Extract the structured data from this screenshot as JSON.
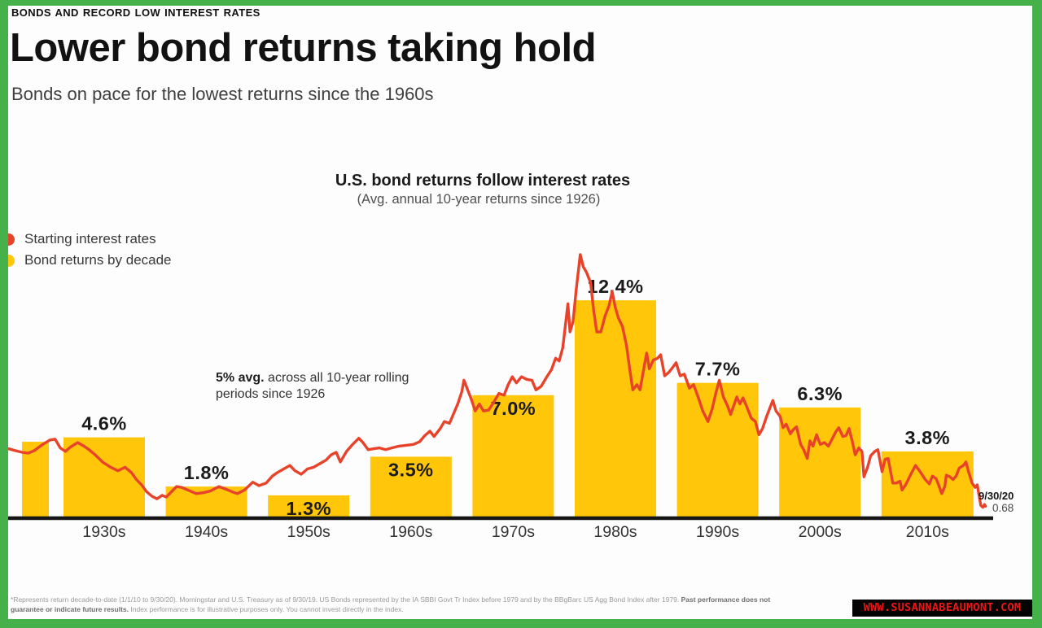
{
  "header": {
    "kicker": "BONDS AND RECORD LOW INTEREST RATES",
    "title": "Lower bond returns taking hold",
    "subtitle": "Bonds on pace for the lowest returns since the 1960s"
  },
  "chart": {
    "note": {
      "bold": "5% avg.",
      "rest": "across all 10-year rolling periods since 1926"
    },
    "end_label": {
      "date": "9/30/20",
      "value": "0.68"
    }
  },
  "chart_data": {
    "type": "bar+line",
    "title": "U.S. bond returns follow interest rates",
    "subtitle": "(Avg. annual 10-year returns since 1926)",
    "y_unit": "percent",
    "ylim": [
      0,
      16
    ],
    "xlim": [
      1926,
      2020.75
    ],
    "grid": false,
    "legend_position": "top-left",
    "bars": {
      "name": "Bond returns by decade",
      "color": "#ffc60a",
      "categories": [
        "",
        "1930s",
        "1940s",
        "1950s",
        "1960s",
        "1970s",
        "1980s",
        "1990s",
        "2000s",
        "2010s"
      ],
      "values": [
        4.35,
        4.6,
        1.8,
        1.3,
        3.5,
        7.0,
        12.4,
        7.7,
        6.3,
        3.8
      ],
      "value_labels": [
        "",
        "4.6%",
        "1.8%",
        "1.3%",
        "3.5%",
        "7.0%",
        "12.4%",
        "7.7%",
        "6.3%",
        "3.8%"
      ],
      "label_positions": [
        "none",
        "above",
        "above",
        "inside",
        "inside",
        "inside",
        "above",
        "above",
        "above",
        "above"
      ]
    },
    "line": {
      "name": "Starting interest rates",
      "color": "#e8432a",
      "end_annotation": {
        "date": "9/30/20",
        "value": 0.68
      },
      "points": [
        [
          1925.9,
          3.95
        ],
        [
          1926.5,
          3.85
        ],
        [
          1927.2,
          3.75
        ],
        [
          1927.8,
          3.7
        ],
        [
          1928.4,
          3.85
        ],
        [
          1929.2,
          4.2
        ],
        [
          1929.9,
          4.45
        ],
        [
          1930.4,
          4.5
        ],
        [
          1930.9,
          4.0
        ],
        [
          1931.4,
          3.8
        ],
        [
          1931.9,
          4.05
        ],
        [
          1932.6,
          4.3
        ],
        [
          1933.2,
          4.1
        ],
        [
          1933.7,
          3.9
        ],
        [
          1934.3,
          3.6
        ],
        [
          1935,
          3.2
        ],
        [
          1935.8,
          2.9
        ],
        [
          1936.5,
          2.7
        ],
        [
          1937.2,
          2.9
        ],
        [
          1937.8,
          2.6
        ],
        [
          1938.3,
          2.2
        ],
        [
          1938.8,
          1.9
        ],
        [
          1939.3,
          1.5
        ],
        [
          1939.8,
          1.25
        ],
        [
          1940.3,
          1.1
        ],
        [
          1940.8,
          1.3
        ],
        [
          1941.2,
          1.2
        ],
        [
          1941.7,
          1.5
        ],
        [
          1942.2,
          1.8
        ],
        [
          1942.7,
          1.75
        ],
        [
          1943.3,
          1.6
        ],
        [
          1944.1,
          1.4
        ],
        [
          1944.8,
          1.45
        ],
        [
          1945.5,
          1.55
        ],
        [
          1946.3,
          1.8
        ],
        [
          1947,
          1.65
        ],
        [
          1947.6,
          1.5
        ],
        [
          1948.1,
          1.4
        ],
        [
          1948.8,
          1.6
        ],
        [
          1949.6,
          2.05
        ],
        [
          1950.2,
          1.85
        ],
        [
          1950.9,
          2.0
        ],
        [
          1951.5,
          2.4
        ],
        [
          1952,
          2.6
        ],
        [
          1952.6,
          2.8
        ],
        [
          1953.2,
          3.0
        ],
        [
          1953.7,
          2.7
        ],
        [
          1954.3,
          2.5
        ],
        [
          1954.9,
          2.8
        ],
        [
          1955.5,
          2.9
        ],
        [
          1956.1,
          3.1
        ],
        [
          1956.7,
          3.3
        ],
        [
          1957.2,
          3.6
        ],
        [
          1957.7,
          3.75
        ],
        [
          1958.1,
          3.2
        ],
        [
          1958.7,
          3.8
        ],
        [
          1959.3,
          4.2
        ],
        [
          1959.9,
          4.55
        ],
        [
          1960.3,
          4.3
        ],
        [
          1960.8,
          3.9
        ],
        [
          1961.3,
          3.95
        ],
        [
          1961.9,
          4.0
        ],
        [
          1962.5,
          3.9
        ],
        [
          1963.1,
          4.0
        ],
        [
          1963.8,
          4.1
        ],
        [
          1964.5,
          4.15
        ],
        [
          1965.2,
          4.2
        ],
        [
          1965.8,
          4.35
        ],
        [
          1966.3,
          4.7
        ],
        [
          1966.8,
          4.95
        ],
        [
          1967.2,
          4.65
        ],
        [
          1967.8,
          5.1
        ],
        [
          1968.2,
          5.5
        ],
        [
          1968.7,
          5.4
        ],
        [
          1969.1,
          5.95
        ],
        [
          1969.5,
          6.5
        ],
        [
          1969.9,
          7.2
        ],
        [
          1970.1,
          7.85
        ],
        [
          1970.4,
          7.4
        ],
        [
          1970.8,
          6.8
        ],
        [
          1971.2,
          6.1
        ],
        [
          1971.6,
          6.5
        ],
        [
          1972,
          6.1
        ],
        [
          1972.5,
          6.15
        ],
        [
          1973,
          6.6
        ],
        [
          1973.5,
          7.1
        ],
        [
          1974,
          7.0
        ],
        [
          1974.4,
          7.6
        ],
        [
          1974.8,
          8.05
        ],
        [
          1975.2,
          7.7
        ],
        [
          1975.7,
          8.05
        ],
        [
          1976.2,
          7.9
        ],
        [
          1976.7,
          7.85
        ],
        [
          1977.1,
          7.3
        ],
        [
          1977.6,
          7.5
        ],
        [
          1978.1,
          8.0
        ],
        [
          1978.6,
          8.45
        ],
        [
          1979,
          9.1
        ],
        [
          1979.35,
          8.95
        ],
        [
          1979.7,
          9.7
        ],
        [
          1980,
          11.2
        ],
        [
          1980.2,
          12.2
        ],
        [
          1980.4,
          10.6
        ],
        [
          1980.7,
          11.2
        ],
        [
          1981,
          13.0
        ],
        [
          1981.2,
          14.0
        ],
        [
          1981.4,
          15.0
        ],
        [
          1981.7,
          14.3
        ],
        [
          1982,
          14.0
        ],
        [
          1982.4,
          13.4
        ],
        [
          1982.7,
          11.8
        ],
        [
          1983,
          10.6
        ],
        [
          1983.4,
          10.6
        ],
        [
          1983.8,
          11.5
        ],
        [
          1984.2,
          12.1
        ],
        [
          1984.5,
          12.9
        ],
        [
          1984.8,
          12.0
        ],
        [
          1985.1,
          11.4
        ],
        [
          1985.5,
          10.9
        ],
        [
          1985.9,
          9.8
        ],
        [
          1986.2,
          8.5
        ],
        [
          1986.5,
          7.3
        ],
        [
          1986.9,
          7.6
        ],
        [
          1987.2,
          7.3
        ],
        [
          1987.6,
          8.6
        ],
        [
          1987.85,
          9.4
        ],
        [
          1988.1,
          8.5
        ],
        [
          1988.5,
          9.0
        ],
        [
          1988.9,
          9.1
        ],
        [
          1989.2,
          9.3
        ],
        [
          1989.6,
          8.1
        ],
        [
          1990,
          8.3
        ],
        [
          1990.4,
          8.6
        ],
        [
          1990.7,
          8.85
        ],
        [
          1991.1,
          8.1
        ],
        [
          1991.5,
          8.2
        ],
        [
          1992,
          7.4
        ],
        [
          1992.4,
          7.6
        ],
        [
          1992.9,
          6.8
        ],
        [
          1993.3,
          6.1
        ],
        [
          1993.8,
          5.5
        ],
        [
          1994.2,
          6.2
        ],
        [
          1994.6,
          7.2
        ],
        [
          1994.9,
          7.85
        ],
        [
          1995.3,
          6.9
        ],
        [
          1995.7,
          6.4
        ],
        [
          1996,
          5.9
        ],
        [
          1996.3,
          6.4
        ],
        [
          1996.6,
          6.9
        ],
        [
          1996.9,
          6.5
        ],
        [
          1997.2,
          6.85
        ],
        [
          1997.6,
          6.3
        ],
        [
          1998,
          5.7
        ],
        [
          1998.4,
          5.5
        ],
        [
          1998.75,
          4.75
        ],
        [
          1999.1,
          5.1
        ],
        [
          1999.5,
          5.8
        ],
        [
          1999.9,
          6.4
        ],
        [
          2000.1,
          6.7
        ],
        [
          2000.4,
          6.1
        ],
        [
          2000.8,
          5.8
        ],
        [
          2001.1,
          5.15
        ],
        [
          2001.4,
          5.35
        ],
        [
          2001.8,
          4.8
        ],
        [
          2002.1,
          5.05
        ],
        [
          2002.4,
          5.2
        ],
        [
          2002.8,
          4.2
        ],
        [
          2003.1,
          3.9
        ],
        [
          2003.45,
          3.4
        ],
        [
          2003.7,
          4.4
        ],
        [
          2004,
          4.1
        ],
        [
          2004.35,
          4.75
        ],
        [
          2004.7,
          4.2
        ],
        [
          2005.1,
          4.3
        ],
        [
          2005.5,
          4.1
        ],
        [
          2005.9,
          4.55
        ],
        [
          2006.2,
          4.9
        ],
        [
          2006.5,
          5.15
        ],
        [
          2006.9,
          4.65
        ],
        [
          2007.2,
          4.7
        ],
        [
          2007.5,
          5.1
        ],
        [
          2007.8,
          4.4
        ],
        [
          2008.1,
          3.6
        ],
        [
          2008.45,
          4.0
        ],
        [
          2008.75,
          3.8
        ],
        [
          2008.95,
          2.35
        ],
        [
          2009.3,
          2.9
        ],
        [
          2009.6,
          3.55
        ],
        [
          2010,
          3.8
        ],
        [
          2010.3,
          3.9
        ],
        [
          2010.7,
          2.65
        ],
        [
          2011,
          3.35
        ],
        [
          2011.3,
          3.4
        ],
        [
          2011.75,
          2.0
        ],
        [
          2012.1,
          2.0
        ],
        [
          2012.45,
          2.1
        ],
        [
          2012.65,
          1.6
        ],
        [
          2013,
          1.9
        ],
        [
          2013.5,
          2.5
        ],
        [
          2013.95,
          3.0
        ],
        [
          2014.4,
          2.65
        ],
        [
          2014.9,
          2.2
        ],
        [
          2015.3,
          1.95
        ],
        [
          2015.6,
          2.4
        ],
        [
          2015.95,
          2.25
        ],
        [
          2016.2,
          1.9
        ],
        [
          2016.5,
          1.4
        ],
        [
          2016.8,
          1.8
        ],
        [
          2016.95,
          2.45
        ],
        [
          2017.3,
          2.35
        ],
        [
          2017.6,
          2.2
        ],
        [
          2017.9,
          2.4
        ],
        [
          2018.2,
          2.85
        ],
        [
          2018.6,
          3.0
        ],
        [
          2018.85,
          3.2
        ],
        [
          2019.1,
          2.65
        ],
        [
          2019.45,
          2.0
        ],
        [
          2019.75,
          1.75
        ],
        [
          2019.95,
          1.9
        ],
        [
          2020.15,
          1.2
        ],
        [
          2020.3,
          0.72
        ],
        [
          2020.5,
          0.62
        ],
        [
          2020.65,
          0.78
        ],
        [
          2020.75,
          0.68
        ]
      ]
    }
  },
  "footnote": {
    "line1": "*Represents return decade-to-date (1/1/10 to 9/30/20).  Morningstar and U.S. Treasury as of 9/30/19. US Bonds represented by the IA SBBI Govt Tr Index before 1979 and by the BBgBarc US Agg Bond Index after 1979. ",
    "line1_bold": "Past performance does not",
    "line2_bold": "guarantee or indicate future results.",
    "line2": " Index performance is for illustrative purposes only. You cannot invest directly in the index."
  },
  "watermark": {
    "text": "WWW.SUSANNABEAUMONT.COM"
  },
  "colors": {
    "border": "#46b14b",
    "bar": "#ffc60a",
    "line": "#e8432a",
    "axis": "#151515"
  }
}
